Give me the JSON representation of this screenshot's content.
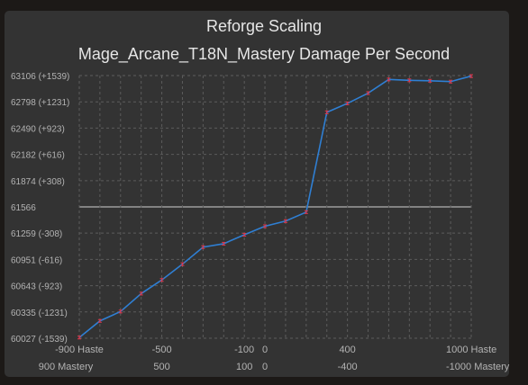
{
  "chart_data": {
    "type": "line",
    "title": "Reforge Scaling",
    "subtitle": "Mage_Arcane_T18N_Mastery Damage Per Second",
    "baseline": 61566,
    "ylim": [
      60027,
      63106
    ],
    "xlim": [
      -900,
      1000
    ],
    "y_ticks": [
      {
        "value": 63106,
        "label": "63106 (+1539)"
      },
      {
        "value": 62798,
        "label": "62798 (+1231)"
      },
      {
        "value": 62490,
        "label": "62490 (+923)"
      },
      {
        "value": 62182,
        "label": "62182 (+616)"
      },
      {
        "value": 61874,
        "label": "61874 (+308)"
      },
      {
        "value": 61566,
        "label": "61566"
      },
      {
        "value": 61259,
        "label": "61259 (-308)"
      },
      {
        "value": 60951,
        "label": "60951 (-616)"
      },
      {
        "value": 60643,
        "label": "60643 (-923)"
      },
      {
        "value": 60335,
        "label": "60335 (-1231)"
      },
      {
        "value": 60027,
        "label": "60027 (-1539)"
      }
    ],
    "x_ticks": [
      {
        "value": -900,
        "haste": "-900 Haste",
        "mastery": "900 Mastery"
      },
      {
        "value": -500,
        "haste": "-500",
        "mastery": "500"
      },
      {
        "value": -100,
        "haste": "-100",
        "mastery": "100"
      },
      {
        "value": 0,
        "haste": "0",
        "mastery": "0"
      },
      {
        "value": 400,
        "haste": "400",
        "mastery": "-400"
      },
      {
        "value": 1000,
        "haste": "1000 Haste",
        "mastery": "-1000 Mastery"
      }
    ],
    "series": [
      {
        "x": [
          -900,
          -800,
          -700,
          -600,
          -500,
          -400,
          -300,
          -200,
          -100,
          0,
          100,
          200,
          300,
          400,
          500,
          600,
          700,
          800,
          900,
          1000
        ],
        "y": [
          60035,
          60230,
          60340,
          60550,
          60710,
          60895,
          61095,
          61135,
          61240,
          61340,
          61400,
          61505,
          62675,
          62780,
          62900,
          63060,
          63050,
          63045,
          63035,
          63100
        ],
        "err": [
          16,
          16,
          16,
          16,
          16,
          16,
          16,
          16,
          16,
          16,
          16,
          16,
          16,
          16,
          16,
          16,
          16,
          16,
          16,
          16
        ]
      }
    ],
    "colors": {
      "line": "#2f7fd3",
      "error": "#e0364a",
      "grid": "#5c5c5c",
      "baseline": "#d0d0d0"
    },
    "grid": true
  }
}
